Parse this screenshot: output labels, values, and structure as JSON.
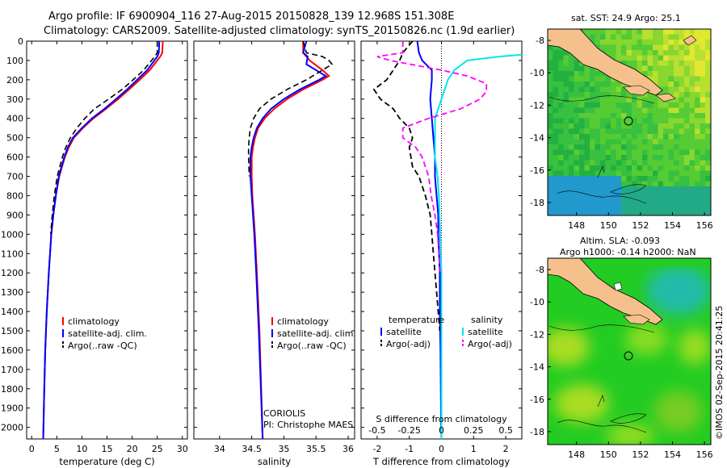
{
  "header": {
    "line1": "Argo profile: IF 6900904_116 27-Aug-2015 20150828_139 12.968S 151.308E",
    "line2": "Climatology: CARS2009. Satellite-adjusted climatology: synTS_20150826.nc (1.9d earlier)"
  },
  "footer_stamp": "©IMOS 02-Sep-2015 20:41:25",
  "colors": {
    "climatology": "#ff0000",
    "satellite": "#0000ff",
    "argo": "#000000",
    "sal_satellite": "#00e5ee",
    "sal_argo": "#ff00ff",
    "land": "#f5c08c",
    "ocean_sst": "#22bb33",
    "ocean_sla": "#22cc22"
  },
  "chart_data": [
    {
      "type": "line",
      "panel": "temperature",
      "xlabel": "temperature (deg C)",
      "xlim": [
        -1,
        31
      ],
      "ylim": [
        0,
        2060
      ],
      "y_reversed": true,
      "xticks": [
        0,
        5,
        10,
        15,
        20,
        25,
        30
      ],
      "yticks": [
        0,
        100,
        200,
        300,
        400,
        500,
        600,
        700,
        800,
        900,
        1000,
        1100,
        1200,
        1300,
        1400,
        1500,
        1600,
        1700,
        1800,
        1900,
        2000
      ],
      "legend": [
        "climatology",
        "satellite-adj. clim.",
        "Argo(..raw -QC)"
      ],
      "series": [
        {
          "name": "climatology",
          "y": [
            0,
            60,
            80,
            150,
            200,
            250,
            300,
            350,
            400,
            450,
            500,
            550,
            600,
            700,
            800,
            900,
            1000,
            1200,
            1400,
            1600,
            1800,
            2000,
            2060
          ],
          "values": [
            26.1,
            26.0,
            25.6,
            23.5,
            21.5,
            19.4,
            17.2,
            14.8,
            12.3,
            10.2,
            8.4,
            7.4,
            6.6,
            5.5,
            4.8,
            4.3,
            3.9,
            3.4,
            3.0,
            2.7,
            2.5,
            2.35,
            2.3
          ]
        },
        {
          "name": "satellite-adj. clim.",
          "y": [
            0,
            60,
            80,
            150,
            200,
            250,
            300,
            350,
            400,
            450,
            500,
            550,
            600,
            700,
            800,
            900,
            1000,
            1200,
            1400,
            1600,
            1800,
            2000,
            2060
          ],
          "values": [
            25.4,
            25.3,
            25.0,
            23.0,
            21.0,
            19.0,
            16.8,
            14.5,
            12.0,
            10.0,
            8.2,
            7.2,
            6.5,
            5.4,
            4.8,
            4.3,
            3.9,
            3.4,
            3.0,
            2.7,
            2.5,
            2.35,
            2.3
          ]
        },
        {
          "name": "Argo(..raw -QC)",
          "y": [
            0,
            60,
            80,
            150,
            200,
            250,
            300,
            350,
            400,
            450,
            500,
            550,
            600,
            700,
            800,
            900,
            1000
          ],
          "values": [
            25.0,
            25.0,
            24.5,
            22.3,
            20.2,
            18.0,
            15.3,
            12.5,
            10.6,
            9.0,
            7.7,
            6.8,
            6.1,
            5.1,
            4.5,
            4.1,
            3.8
          ]
        }
      ]
    },
    {
      "type": "line",
      "panel": "salinity",
      "xlabel": "salinity",
      "xlim": [
        33.6,
        36.1
      ],
      "ylim": [
        0,
        2060
      ],
      "y_reversed": true,
      "xticks": [
        34,
        34.5,
        35,
        35.5,
        36
      ],
      "legend": [
        "climatology",
        "satellite-adj. clim.",
        "Argo(..raw -QC)"
      ],
      "annotation": [
        "CORIOLIS",
        "PI: Christophe MAES"
      ],
      "series": [
        {
          "name": "climatology",
          "y": [
            0,
            60,
            100,
            150,
            180,
            200,
            250,
            300,
            350,
            400,
            450,
            500,
            550,
            600,
            700,
            800,
            900,
            1000,
            1200,
            1500,
            2060
          ],
          "values": [
            35.3,
            35.3,
            35.4,
            35.6,
            35.7,
            35.6,
            35.3,
            35.05,
            34.85,
            34.7,
            34.6,
            34.55,
            34.52,
            34.5,
            34.5,
            34.51,
            34.53,
            34.55,
            34.58,
            34.62,
            34.67
          ]
        },
        {
          "name": "satellite-adj. clim.",
          "y": [
            0,
            60,
            80,
            120,
            160,
            180,
            200,
            250,
            300,
            350,
            400,
            450,
            500,
            550,
            600,
            700,
            800,
            900,
            1000,
            1200,
            1500,
            2060
          ],
          "values": [
            35.35,
            35.3,
            35.37,
            35.35,
            35.55,
            35.65,
            35.55,
            35.25,
            35.0,
            34.8,
            34.67,
            34.58,
            34.53,
            34.5,
            34.48,
            34.48,
            34.5,
            34.52,
            34.54,
            34.57,
            34.61,
            34.67
          ]
        },
        {
          "name": "Argo(..raw -QC)",
          "y": [
            0,
            60,
            80,
            100,
            120,
            150,
            200,
            250,
            300,
            350,
            400,
            450,
            500,
            550,
            600,
            700
          ],
          "values": [
            35.3,
            35.35,
            35.6,
            35.7,
            35.75,
            35.6,
            35.35,
            35.05,
            34.8,
            34.62,
            34.53,
            34.48,
            34.46,
            34.45,
            34.45,
            34.46
          ]
        }
      ]
    },
    {
      "type": "line",
      "panel": "difference from climatology",
      "xlabel": "T difference from climatology",
      "xlabel2": "S difference from climatology",
      "xlim": [
        -2.5,
        2.5
      ],
      "ylim": [
        0,
        2060
      ],
      "y_reversed": true,
      "xticks": [
        -2,
        -1,
        0,
        1,
        2
      ],
      "xticks_S": [
        "-0.5",
        "-0.25",
        "0",
        "0.25",
        "0.5"
      ],
      "legend_headers": [
        "temperature",
        "salinity"
      ],
      "legend": [
        "satellite",
        "Argo(-adj)",
        "satellite",
        "Argo(-adj)"
      ],
      "series": [
        {
          "name": "satellite",
          "quantity": "temperature",
          "y": [
            0,
            60,
            100,
            150,
            200,
            300,
            400,
            500,
            600,
            700,
            800,
            900,
            1000,
            1200,
            1400,
            1600,
            1800,
            2000,
            2060
          ],
          "values": [
            -0.75,
            -0.7,
            -0.6,
            -0.3,
            -0.3,
            -0.35,
            -0.3,
            -0.25,
            -0.2,
            -0.2,
            -0.15,
            -0.1,
            -0.1,
            -0.05,
            -0.05,
            -0.03,
            -0.02,
            -0.01,
            0
          ]
        },
        {
          "name": "Argo(-adj)",
          "quantity": "temperature",
          "y": [
            0,
            60,
            100,
            150,
            200,
            250,
            300,
            350,
            400,
            450,
            500,
            550,
            600,
            650,
            700,
            800,
            900,
            1000,
            1100,
            1200,
            1300,
            1400,
            1500
          ],
          "values": [
            -0.9,
            -1.2,
            -1.3,
            -1.5,
            -1.7,
            -2.1,
            -1.9,
            -1.5,
            -1.3,
            -1.0,
            -0.9,
            -1.0,
            -0.95,
            -0.9,
            -0.7,
            -0.5,
            -0.35,
            -0.3,
            -0.25,
            -0.2,
            -0.15,
            -0.1,
            -0.05
          ]
        },
        {
          "name": "satellite",
          "quantity": "salinity",
          "y": [
            0,
            25,
            60,
            80,
            100,
            150,
            200,
            300,
            400,
            500,
            600,
            700,
            800,
            1000,
            1200,
            1500,
            1800,
            2060
          ],
          "values": [
            1.6,
            1.5,
            0.8,
            0.45,
            0.2,
            0.1,
            0.05,
            0.0,
            -0.05,
            -0.05,
            -0.05,
            -0.03,
            -0.02,
            -0.01,
            0,
            0,
            0,
            0
          ]
        },
        {
          "name": "Argo(-adj)",
          "quantity": "salinity",
          "y": [
            0,
            60,
            80,
            100,
            150,
            180,
            220,
            260,
            300,
            350,
            400,
            450,
            500,
            550,
            600,
            700,
            800,
            900,
            1000,
            1100,
            1200
          ],
          "values": [
            -0.3,
            -0.3,
            -0.5,
            -0.4,
            0.0,
            0.2,
            0.35,
            0.35,
            0.3,
            0.15,
            -0.1,
            -0.3,
            -0.3,
            -0.2,
            -0.15,
            -0.1,
            -0.08,
            -0.05,
            -0.03,
            -0.02,
            -0.01
          ]
        }
      ]
    },
    {
      "type": "heatmap",
      "panel": "sat. SST map",
      "title": "sat. SST: 24.9 Argo: 25.1",
      "xticks": [
        148,
        150,
        152,
        154,
        156
      ],
      "yticks": [
        -8,
        -10,
        -12,
        -14,
        -16,
        -18
      ],
      "xlim": [
        146.2,
        156.4
      ],
      "ylim": [
        -18.8,
        -7.3
      ],
      "marker": {
        "lon": 151.3,
        "lat": -12.97
      }
    },
    {
      "type": "heatmap",
      "panel": "altimetry SLA map",
      "title": "Altim. SLA: -0.093",
      "subtitle": "Argo h1000: -0.14 h2000: NaN",
      "xticks": [
        148,
        150,
        152,
        154,
        156
      ],
      "yticks": [
        -8,
        -10,
        -12,
        -14,
        -16,
        -18
      ],
      "xlim": [
        146.2,
        156.4
      ],
      "ylim": [
        -18.8,
        -7.3
      ],
      "marker": {
        "lon": 151.3,
        "lat": -12.97
      }
    }
  ]
}
